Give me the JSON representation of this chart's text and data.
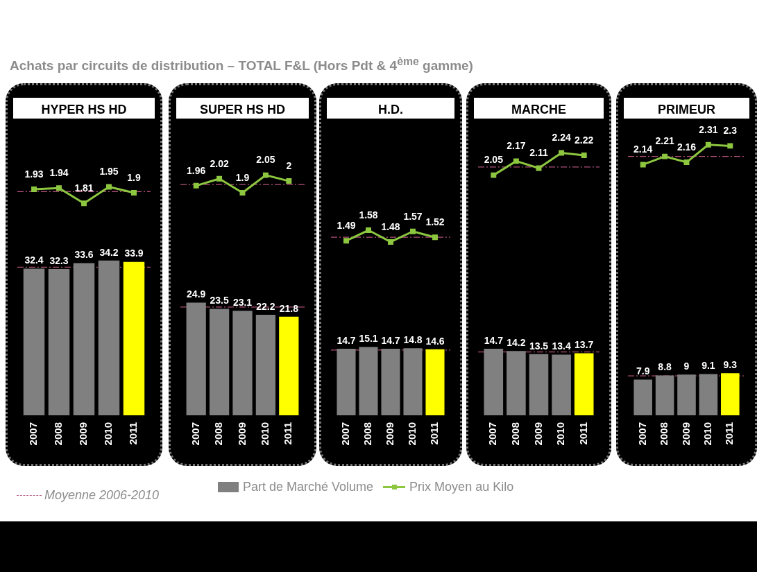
{
  "chart_data": [
    {
      "type": "line",
      "title": "HYPER HS HD",
      "annotations": [
        "Achats par circuits de distribution – TOTAL F&L (Hors Pdt & 4$^{ème}$ gamme)"
      ],
      "categories": [
        "2007",
        "2008",
        "2009",
        "2010",
        "2011"
      ],
      "tick_labels": false,
      "data_labels": true,
      "legend": "bottom",
      "marker": "square",
      "series": [
        {
          "name": "Prix Moyen au Kilo",
          "color": "#8dc63f",
          "values": [
            1.93,
            1.94,
            1.81,
            1.95,
            1.9
          ]
        }
      ],
      "ref_lines": [
        {
          "axis": "y",
          "value": 1.91,
          "label": "Moyenne 2006-2010",
          "color": "#b0507a"
        }
      ]
    },
    {
      "type": "bar",
      "categories": [
        "2007",
        "2008",
        "2009",
        "2010",
        "2011"
      ],
      "tick_labels": "x",
      "data_labels": true,
      "legend": "bottom",
      "series": [
        {
          "name": "Part de Marché Volume",
          "color": "#808080",
          "colors": [
            "#808080",
            "#808080",
            "#808080",
            "#808080",
            "#ffff00"
          ],
          "values": [
            32.4,
            32.3,
            33.6,
            34.2,
            33.9
          ]
        }
      ],
      "ref_lines": [
        {
          "axis": "y",
          "value": 32.7,
          "color": "#b0507a"
        }
      ]
    },
    {
      "type": "line",
      "title": "SUPER HS HD",
      "categories": [
        "2007",
        "2008",
        "2009",
        "2010",
        "2011"
      ],
      "tick_labels": false,
      "data_labels": true,
      "marker": "square",
      "series": [
        {
          "color": "#8dc63f",
          "values": [
            1.96,
            2.02,
            1.9,
            2.05,
            2
          ]
        }
      ],
      "ref_lines": [
        {
          "axis": "y",
          "value": 1.97,
          "color": "#b0507a"
        }
      ]
    },
    {
      "type": "bar",
      "categories": [
        "2007",
        "2008",
        "2009",
        "2010",
        "2011"
      ],
      "tick_labels": "x",
      "data_labels": true,
      "series": [
        {
          "color": "#808080",
          "colors": [
            "#808080",
            "#808080",
            "#808080",
            "#808080",
            "#ffff00"
          ],
          "values": [
            24.9,
            23.5,
            23.1,
            22.2,
            21.8
          ]
        }
      ],
      "ref_lines": [
        {
          "axis": "y",
          "value": 23.9,
          "color": "#b0507a"
        }
      ]
    },
    {
      "type": "line",
      "title": "H.D.",
      "categories": [
        "2007",
        "2008",
        "2009",
        "2010",
        "2011"
      ],
      "tick_labels": false,
      "data_labels": true,
      "marker": "square",
      "series": [
        {
          "color": "#8dc63f",
          "values": [
            1.49,
            1.58,
            1.48,
            1.57,
            1.52
          ]
        }
      ],
      "ref_lines": [
        {
          "axis": "y",
          "value": 1.52,
          "color": "#b0507a"
        }
      ]
    },
    {
      "type": "bar",
      "categories": [
        "2007",
        "2008",
        "2009",
        "2010",
        "2011"
      ],
      "tick_labels": "x",
      "data_labels": true,
      "series": [
        {
          "color": "#808080",
          "colors": [
            "#808080",
            "#808080",
            "#808080",
            "#808080",
            "#ffff00"
          ],
          "values": [
            14.7,
            15.1,
            14.7,
            14.8,
            14.6
          ]
        }
      ],
      "ref_lines": [
        {
          "axis": "y",
          "value": 14.4,
          "color": "#b0507a"
        }
      ]
    },
    {
      "type": "line",
      "title": "MARCHE",
      "categories": [
        "2007",
        "2008",
        "2009",
        "2010",
        "2011"
      ],
      "tick_labels": false,
      "data_labels": true,
      "marker": "square",
      "series": [
        {
          "color": "#8dc63f",
          "values": [
            2.05,
            2.17,
            2.11,
            2.24,
            2.22
          ]
        }
      ],
      "ref_lines": [
        {
          "axis": "y",
          "value": 2.12,
          "color": "#b0507a"
        }
      ]
    },
    {
      "type": "bar",
      "categories": [
        "2007",
        "2008",
        "2009",
        "2010",
        "2011"
      ],
      "tick_labels": "x",
      "data_labels": true,
      "series": [
        {
          "color": "#808080",
          "colors": [
            "#808080",
            "#808080",
            "#808080",
            "#808080",
            "#ffff00"
          ],
          "values": [
            14.7,
            14.2,
            13.5,
            13.4,
            13.7
          ]
        }
      ],
      "ref_lines": [
        {
          "axis": "y",
          "value": 14.0,
          "color": "#b0507a"
        }
      ]
    },
    {
      "type": "line",
      "title": "PRIMEUR",
      "categories": [
        "2007",
        "2008",
        "2009",
        "2010",
        "2011"
      ],
      "tick_labels": false,
      "data_labels": true,
      "marker": "square",
      "series": [
        {
          "color": "#8dc63f",
          "values": [
            2.14,
            2.21,
            2.16,
            2.31,
            2.3
          ]
        }
      ],
      "ref_lines": [
        {
          "axis": "y",
          "value": 2.21,
          "color": "#b0507a"
        }
      ]
    },
    {
      "type": "bar",
      "categories": [
        "2007",
        "2008",
        "2009",
        "2010",
        "2011"
      ],
      "tick_labels": "x",
      "data_labels": true,
      "series": [
        {
          "color": "#808080",
          "colors": [
            "#808080",
            "#808080",
            "#808080",
            "#808080",
            "#ffff00"
          ],
          "values": [
            7.9,
            8.8,
            9,
            9.1,
            9.3
          ]
        }
      ],
      "ref_lines": [
        {
          "axis": "y",
          "value": 8.7,
          "color": "#b0507a"
        }
      ]
    }
  ]
}
